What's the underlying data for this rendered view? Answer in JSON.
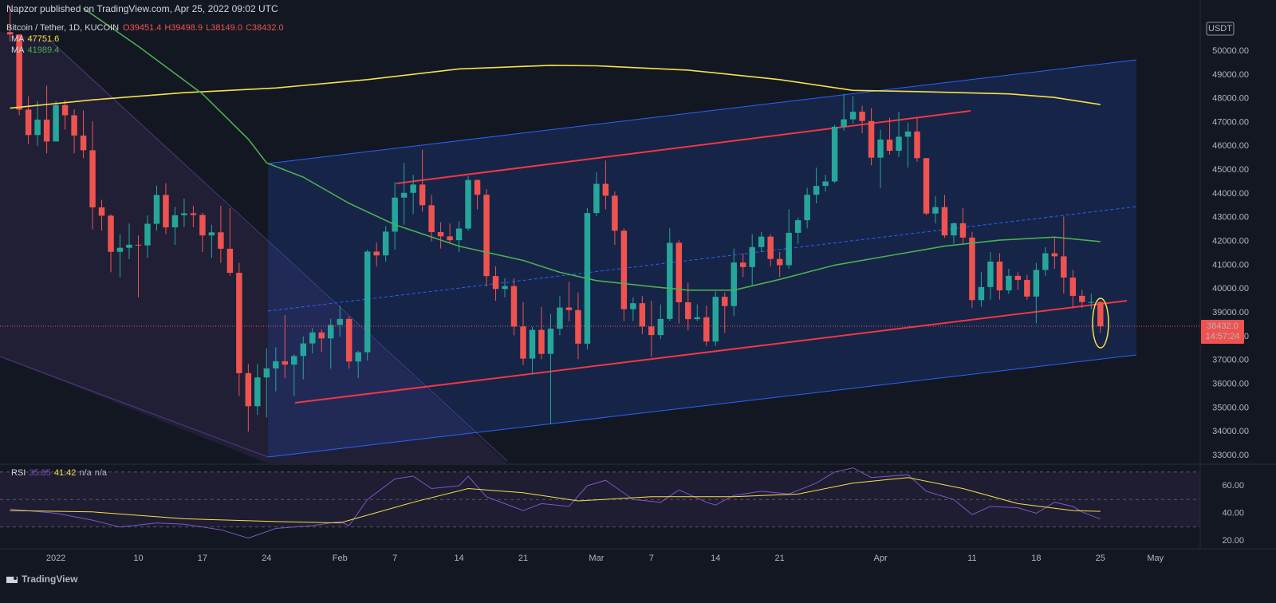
{
  "header": {
    "publisher": "Napzor published on TradingView.com, Apr 25, 2022 09:02 UTC",
    "brand": "TradingView"
  },
  "chart_data": [
    {
      "type": "candlestick",
      "title": "Bitcoin / Tether, 1D, KUCOIN",
      "legend_ohlc": [
        "O39451.4",
        "H39498.9",
        "L38149.0",
        "C38432.0"
      ],
      "currency": "USDT",
      "last_price_label": "38432.0",
      "countdown": "14:57:24",
      "up_color": "#26a69a",
      "down_color": "#ef5350",
      "x": [
        -4,
        -3,
        -2,
        -1,
        0,
        1,
        2,
        3,
        4,
        5,
        6,
        7,
        8,
        9,
        10,
        11,
        12,
        13,
        14,
        15,
        16,
        17,
        18,
        19,
        20,
        21,
        22,
        23,
        24,
        25,
        26,
        27,
        28,
        29,
        30,
        31,
        32,
        33,
        34,
        35,
        36,
        37,
        38,
        39,
        40,
        41,
        42,
        43,
        44,
        45,
        46,
        47,
        48,
        49,
        50,
        51,
        52,
        53,
        54,
        55,
        56,
        57,
        58,
        59,
        60,
        61,
        62,
        63,
        64,
        65,
        66,
        67,
        68,
        69,
        70,
        71,
        72,
        73,
        74,
        75,
        76,
        77,
        78,
        79,
        80,
        81,
        82,
        83,
        84,
        85,
        86,
        87,
        88,
        89,
        90,
        91,
        92,
        93,
        94,
        95,
        96,
        97,
        98,
        99,
        100,
        101,
        102,
        103,
        104,
        105,
        106,
        107,
        108,
        109,
        110,
        111,
        112,
        113,
        114,
        115
      ],
      "open": [
        50800,
        50700,
        47540,
        46470,
        47120,
        46200,
        47730,
        47300,
        46450,
        45830,
        43430,
        43080,
        41560,
        41730,
        41860,
        41830,
        42740,
        43950,
        42590,
        43100,
        43180,
        43110,
        42250,
        42380,
        41690,
        40680,
        36460,
        35070,
        36280,
        36660,
        36960,
        36820,
        37180,
        37710,
        38170,
        37920,
        38490,
        38740,
        36950,
        37340,
        41570,
        41410,
        42410,
        43840,
        44040,
        44390,
        43520,
        42390,
        42210,
        42050,
        42540,
        44580,
        43960,
        40540,
        40000,
        40120,
        38420,
        37070,
        38280,
        37270,
        38330,
        39220,
        39110,
        37700,
        43190,
        44420,
        43920,
        42450,
        39150,
        39400,
        38420,
        38060,
        38740,
        41940,
        39440,
        38730,
        38810,
        37790,
        39670,
        39280,
        41110,
        40920,
        41760,
        42200,
        41260,
        41000,
        42360,
        42890,
        43960,
        44330,
        44520,
        46820,
        47130,
        47450,
        47060,
        45520,
        46280,
        45810,
        46400,
        46620,
        45500,
        43170,
        43440,
        42250,
        42760,
        42160,
        39530,
        40080,
        41150,
        39940,
        40550,
        40380,
        39680,
        40800,
        41500,
        41370,
        40480,
        39710,
        39450,
        39451.4
      ],
      "high": [
        51900,
        50700,
        48100,
        47900,
        48550,
        47900,
        47950,
        47550,
        47500,
        47050,
        43750,
        43140,
        42300,
        42750,
        42250,
        43100,
        44350,
        44450,
        43450,
        43800,
        43500,
        43200,
        42700,
        43500,
        43400,
        41100,
        36850,
        36850,
        37500,
        37550,
        38900,
        37250,
        38000,
        38350,
        38300,
        38750,
        39300,
        38850,
        37400,
        41650,
        41950,
        42650,
        44500,
        45300,
        44800,
        45850,
        43950,
        42800,
        42750,
        42850,
        44750,
        44600,
        44200,
        40950,
        40450,
        40450,
        39450,
        38400,
        39250,
        38950,
        39700,
        40300,
        39850,
        43400,
        44900,
        45400,
        44100,
        42550,
        39650,
        39700,
        39500,
        39350,
        42550,
        42050,
        40250,
        39350,
        39300,
        39900,
        39850,
        41700,
        41500,
        42300,
        42400,
        42300,
        41550,
        43350,
        43000,
        44250,
        45100,
        44800,
        46900,
        48200,
        48100,
        47700,
        47600,
        46700,
        47200,
        47450,
        47000,
        47200,
        45500,
        43900,
        43950,
        42800,
        43400,
        42400,
        40700,
        41550,
        41500,
        40850,
        40700,
        40600,
        41100,
        41750,
        42200,
        43050,
        40800,
        39950,
        39800,
        39498.9
      ],
      "low": [
        50400,
        47300,
        46100,
        46000,
        45700,
        46200,
        46700,
        45700,
        45500,
        42500,
        42450,
        40700,
        40500,
        41250,
        39650,
        41300,
        42450,
        42300,
        41850,
        42600,
        42600,
        41550,
        41300,
        41100,
        40550,
        35500,
        34000,
        34700,
        34600,
        35700,
        36250,
        35500,
        36200,
        37300,
        37350,
        36650,
        38000,
        36650,
        36250,
        37000,
        40950,
        41150,
        41650,
        42700,
        43150,
        43250,
        42000,
        41700,
        41900,
        41550,
        42450,
        43350,
        40100,
        39500,
        39650,
        38050,
        36800,
        36400,
        37050,
        34320,
        38050,
        38650,
        37050,
        37450,
        43050,
        43350,
        41850,
        38650,
        38650,
        38100,
        37150,
        37900,
        38650,
        38550,
        38250,
        38650,
        37600,
        37600,
        38150,
        38850,
        40500,
        40150,
        41550,
        40950,
        40500,
        40850,
        41900,
        42550,
        43600,
        44100,
        44450,
        46650,
        46950,
        46550,
        45200,
        44250,
        45650,
        45550,
        45100,
        45350,
        43100,
        42750,
        42150,
        41900,
        41900,
        39200,
        39250,
        39550,
        39550,
        39800,
        39950,
        39550,
        38550,
        40550,
        40850,
        39800,
        39200,
        39200,
        39150,
        38149
      ],
      "close": [
        50700,
        47540,
        46470,
        47120,
        46200,
        47730,
        47300,
        46450,
        45830,
        43430,
        43080,
        41560,
        41730,
        41860,
        41830,
        42740,
        43950,
        42590,
        43100,
        43180,
        43110,
        42250,
        42380,
        41690,
        40680,
        36460,
        35070,
        36280,
        36660,
        36960,
        36820,
        37180,
        37710,
        38170,
        37920,
        38490,
        38740,
        36950,
        37340,
        41570,
        41410,
        42410,
        43840,
        44040,
        44390,
        43520,
        42390,
        42210,
        42050,
        42540,
        44580,
        43960,
        40540,
        40000,
        40120,
        38420,
        37070,
        38280,
        37270,
        38330,
        39220,
        39110,
        37700,
        43190,
        44420,
        43920,
        42450,
        39150,
        39400,
        38420,
        38060,
        38740,
        41940,
        39440,
        38730,
        38810,
        37790,
        39670,
        39280,
        41110,
        40920,
        41760,
        42200,
        41260,
        41000,
        42360,
        42890,
        43960,
        44330,
        44520,
        46820,
        47130,
        47450,
        47060,
        45520,
        46280,
        45810,
        46400,
        46620,
        45500,
        43170,
        43440,
        42250,
        42760,
        42160,
        39530,
        40080,
        41150,
        39940,
        40550,
        40380,
        39680,
        40800,
        41500,
        41370,
        40480,
        39710,
        39450,
        39451.4,
        38432
      ],
      "series": [
        {
          "name": "MA",
          "color": "#f7e04b",
          "value_label": "47751.6",
          "x": [
            -4,
            5,
            15,
            25,
            35,
            45,
            55,
            60,
            70,
            80,
            88,
            95,
            105,
            110,
            115
          ],
          "values": [
            47600,
            47950,
            48250,
            48450,
            48800,
            49250,
            49400,
            49380,
            49200,
            48800,
            48350,
            48300,
            48200,
            48050,
            47751.6
          ]
        },
        {
          "name": "MA",
          "color": "#4caf50",
          "value_label": "41989.4",
          "x": [
            4,
            10,
            17,
            22,
            24,
            28,
            33,
            38,
            45,
            52,
            56,
            60,
            66,
            70,
            75,
            80,
            86,
            92,
            98,
            104,
            110,
            115
          ],
          "values": [
            51800,
            50200,
            48200,
            46300,
            45300,
            44700,
            43600,
            42700,
            41800,
            41200,
            40700,
            40350,
            40100,
            39950,
            39950,
            40400,
            41000,
            41400,
            41800,
            42050,
            42180,
            41989.4
          ]
        }
      ],
      "xlim": [
        -5.1,
        125.9
      ],
      "ylim": [
        32665,
        52148
      ],
      "yticks": [
        {
          "value": 33000,
          "label": "33000.00"
        },
        {
          "value": 34000,
          "label": "34000.00"
        },
        {
          "value": 35000,
          "label": "35000.00"
        },
        {
          "value": 36000,
          "label": "36000.00"
        },
        {
          "value": 37000,
          "label": "37000.00"
        },
        {
          "value": 38000,
          "label": "38000.00"
        },
        {
          "value": 39000,
          "label": "39000.00"
        },
        {
          "value": 40000,
          "label": "40000.00"
        },
        {
          "value": 41000,
          "label": "41000.00"
        },
        {
          "value": 42000,
          "label": "42000.00"
        },
        {
          "value": 43000,
          "label": "43000.00"
        },
        {
          "value": 44000,
          "label": "44000.00"
        },
        {
          "value": 45000,
          "label": "45000.00"
        },
        {
          "value": 46000,
          "label": "46000.00"
        },
        {
          "value": 47000,
          "label": "47000.00"
        },
        {
          "value": 48000,
          "label": "48000.00"
        },
        {
          "value": 49000,
          "label": "49000.00"
        },
        {
          "value": 50000,
          "label": "50000.00"
        }
      ],
      "xticks": [
        {
          "value": 1,
          "label": "2022"
        },
        {
          "value": 10,
          "label": "10"
        },
        {
          "value": 17,
          "label": "17"
        },
        {
          "value": 24,
          "label": "24"
        },
        {
          "value": 32,
          "label": "Feb"
        },
        {
          "value": 38,
          "label": "7"
        },
        {
          "value": 45,
          "label": "14"
        },
        {
          "value": 52,
          "label": "21"
        },
        {
          "value": 60,
          "label": "Mar"
        },
        {
          "value": 66,
          "label": "7"
        },
        {
          "value": 73,
          "label": "14"
        },
        {
          "value": 80,
          "label": "21"
        },
        {
          "value": 91,
          "label": "Apr"
        },
        {
          "value": 101,
          "label": "11"
        },
        {
          "value": 108,
          "label": "18"
        },
        {
          "value": 115,
          "label": "25"
        },
        {
          "value": 121,
          "label": "May"
        }
      ],
      "grid": false
    },
    {
      "type": "line",
      "title": "RSI",
      "legend_values": [
        "35.85",
        "41.42",
        "n/a",
        "n/a"
      ],
      "levels": [
        30,
        50,
        70
      ],
      "series": [
        {
          "color": "#7e57c2",
          "x": [
            -4,
            1,
            5,
            8,
            12,
            15,
            19,
            22,
            25,
            29,
            32,
            33,
            35,
            38,
            40,
            42,
            45,
            46,
            48,
            52,
            54,
            57,
            59,
            61,
            64,
            67,
            69,
            72,
            73,
            75,
            78,
            81,
            84,
            86,
            88,
            90,
            94,
            96,
            99,
            101,
            103,
            106,
            108,
            110,
            112,
            113,
            115
          ],
          "values": [
            43,
            40,
            35,
            30,
            33,
            32,
            28,
            22,
            29,
            31,
            34,
            31,
            50,
            65,
            67,
            58,
            60,
            67,
            52,
            42,
            47,
            45,
            60,
            64,
            50,
            48,
            57,
            48,
            46,
            53,
            56,
            54,
            62,
            70,
            73,
            66,
            68,
            56,
            50,
            39,
            45,
            44,
            40,
            48,
            45,
            41,
            35.85
          ]
        },
        {
          "color": "#f7e04b",
          "x": [
            -4,
            5,
            15,
            25,
            32,
            40,
            46,
            52,
            58,
            66,
            75,
            82,
            88,
            94,
            100,
            106,
            112,
            115
          ],
          "values": [
            42,
            41,
            36,
            34,
            33,
            48,
            58,
            55,
            49,
            52,
            52,
            54,
            62,
            66,
            58,
            47,
            42,
            41.42
          ]
        }
      ],
      "ylim": [
        14.2,
        75.1
      ],
      "yticks": [
        {
          "value": 20,
          "label": "20.00"
        },
        {
          "value": 40,
          "label": "40.00"
        },
        {
          "value": 60,
          "label": "60.00"
        }
      ]
    }
  ]
}
